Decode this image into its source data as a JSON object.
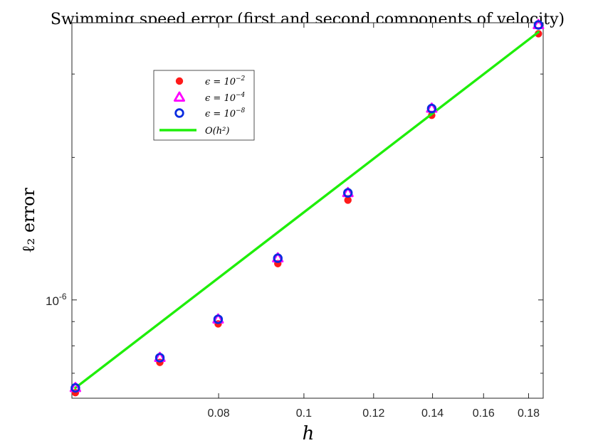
{
  "chart_data": {
    "type": "scatter",
    "title": "Swimming speed error (first and second components of velocity)",
    "xlabel": "h",
    "ylabel": "ℓ₂ error",
    "xscale": "log",
    "yscale": "log",
    "xlim": [
      0.0545,
      0.187
    ],
    "ylim": [
      6.2e-07,
      3.85e-06
    ],
    "xticks": [
      {
        "value": 0.08,
        "label": "0.08"
      },
      {
        "value": 0.1,
        "label": "0.1"
      },
      {
        "value": 0.12,
        "label": "0.12"
      },
      {
        "value": 0.14,
        "label": "0.14"
      },
      {
        "value": 0.16,
        "label": "0.16"
      },
      {
        "value": 0.18,
        "label": "0.18"
      }
    ],
    "yticks": [
      {
        "value": 1e-06,
        "label_base": "10",
        "label_exp": "-6"
      }
    ],
    "yminor_ticks": [
      7e-07,
      8e-07,
      9e-07,
      2e-06,
      3e-06
    ],
    "grid": false,
    "legend_position": "top-left",
    "series": [
      {
        "name": "ϵ = 10",
        "name_exp": "−2",
        "marker": "filled-circle",
        "color": "#ff1a1a",
        "x": [
          0.055,
          0.0686,
          0.0799,
          0.0934,
          0.1122,
          0.1397,
          0.1847
        ],
        "y": [
          6.37e-07,
          7.38e-07,
          8.9e-07,
          1.193e-06,
          1.625e-06,
          2.454e-06,
          3.65e-06
        ]
      },
      {
        "name": "ϵ = 10",
        "name_exp": "−4",
        "marker": "triangle",
        "color": "#ff00ff",
        "x": [
          0.055,
          0.0686,
          0.0799,
          0.0934,
          0.1122,
          0.1397,
          0.1847
        ],
        "y": [
          6.52e-07,
          7.55e-07,
          9.1e-07,
          1.225e-06,
          1.683e-06,
          2.537e-06,
          3.81e-06
        ]
      },
      {
        "name": "ϵ = 10",
        "name_exp": "−8",
        "marker": "open-circle",
        "color": "#0a2be0",
        "x": [
          0.055,
          0.0686,
          0.0799,
          0.0934,
          0.1122,
          0.1397,
          0.1847
        ],
        "y": [
          6.52e-07,
          7.55e-07,
          9.1e-07,
          1.225e-06,
          1.683e-06,
          2.537e-06,
          3.81e-06
        ]
      },
      {
        "name": "O(h²)",
        "marker": "line",
        "color": "#1fee0a",
        "x": [
          0.055,
          0.1847
        ],
        "y": [
          6.52e-07,
          3.68e-06
        ]
      }
    ]
  }
}
